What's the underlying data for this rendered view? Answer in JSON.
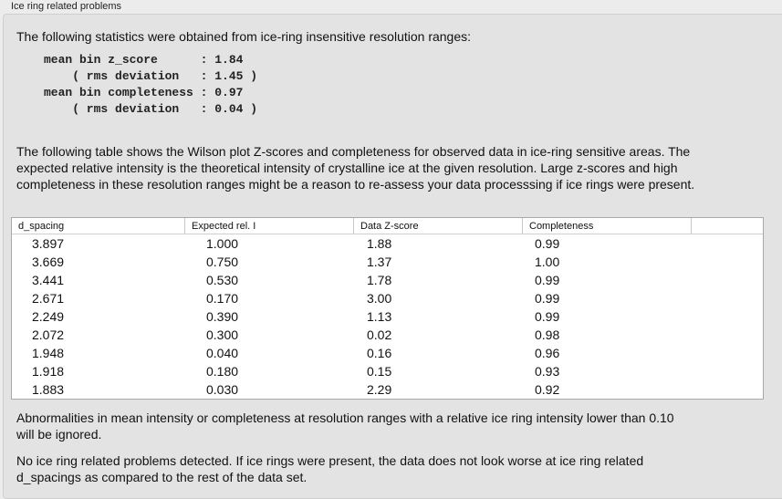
{
  "section_title": "Ice ring related problems",
  "intro": "The following statistics were obtained from ice-ring insensitive resolution ranges:",
  "stats_block": "mean bin z_score      : 1.84\n    ( rms deviation   : 1.45 )\nmean bin completeness : 0.97\n    ( rms deviation   : 0.04 )",
  "table_description": "The following table shows the Wilson plot Z-scores and completeness for observed data in ice-ring sensitive areas. The expected relative intensity is the theoretical intensity of crystalline ice at the given resolution. Large z-scores and high completeness in these resolution ranges might be a reason to re-assess your data processsing if ice rings were present.",
  "table": {
    "columns": [
      "d_spacing",
      "Expected rel. I",
      "Data Z-score",
      "Completeness"
    ],
    "rows": [
      [
        "3.897",
        "1.000",
        "1.88",
        "0.99"
      ],
      [
        "3.669",
        "0.750",
        "1.37",
        "1.00"
      ],
      [
        "3.441",
        "0.530",
        "1.78",
        "0.99"
      ],
      [
        "2.671",
        "0.170",
        "3.00",
        "0.99"
      ],
      [
        "2.249",
        "0.390",
        "1.13",
        "0.99"
      ],
      [
        "2.072",
        "0.300",
        "0.02",
        "0.98"
      ],
      [
        "1.948",
        "0.040",
        "0.16",
        "0.96"
      ],
      [
        "1.918",
        "0.180",
        "0.15",
        "0.93"
      ],
      [
        "1.883",
        "0.030",
        "2.29",
        "0.92"
      ]
    ]
  },
  "note": "Abnormalities in mean intensity or completeness at resolution ranges with a relative ice ring intensity lower than 0.10 will be ignored.",
  "conclusion": "No ice ring related problems detected. If ice rings were present, the data does not look worse at ice ring related d_spacings as compared to the rest of the data set."
}
